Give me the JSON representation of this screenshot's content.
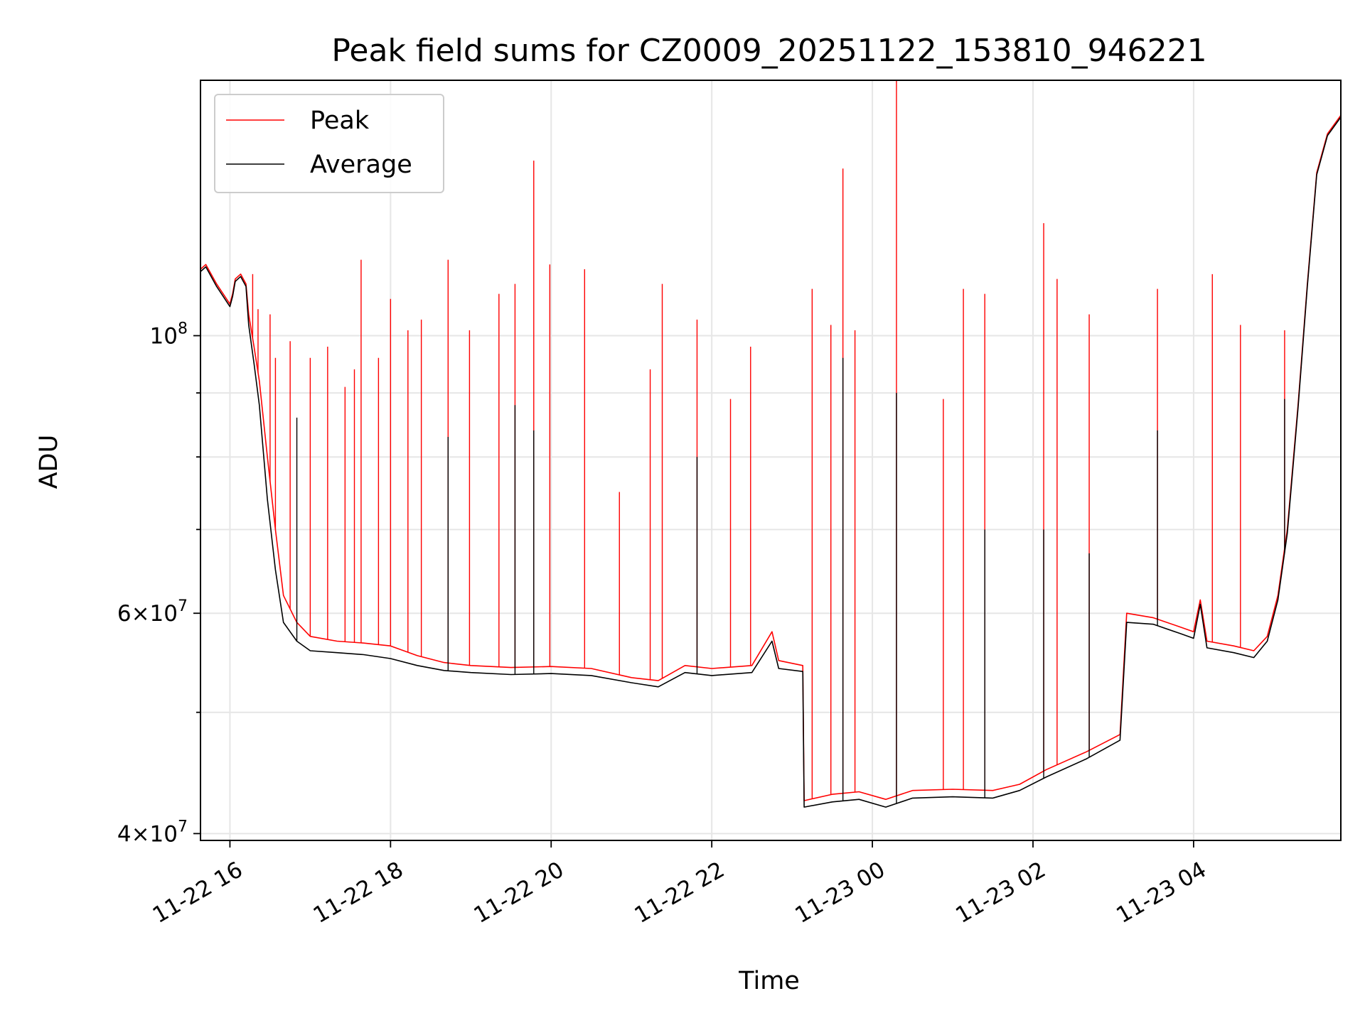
{
  "chart_data": {
    "type": "line",
    "title": "Peak field sums for CZ0009_20251122_153810_946221",
    "xlabel": "Time",
    "ylabel": "ADU",
    "x_ticks": [
      "11-22 16",
      "11-22 18",
      "11-22 20",
      "11-22 22",
      "11-23 00",
      "11-23 02",
      "11-23 04"
    ],
    "y_scale": "log",
    "y_tick_labels": [
      {
        "value": 40000000,
        "mant": "4",
        "exp": "7"
      },
      {
        "value": 60000000,
        "mant": "6",
        "exp": "7"
      },
      {
        "value": 100000000,
        "mant": "",
        "exp": "8"
      }
    ],
    "y_minor_ticks": [
      50000000,
      70000000,
      80000000,
      90000000
    ],
    "xlim": [
      "2025-11-22 15:38",
      "2025-11-23 05:50"
    ],
    "ylim": [
      39500000,
      160000000
    ],
    "grid": true,
    "legend_position": "upper-left",
    "series": [
      {
        "name": "Peak",
        "color": "#ff0000",
        "points": [
          [
            "2025-11-22 15:38",
            113000000
          ],
          [
            "2025-11-22 15:42",
            114000000
          ],
          [
            "2025-11-22 15:50",
            110000000
          ],
          [
            "2025-11-22 16:00",
            106000000
          ],
          [
            "2025-11-22 16:02",
            108000000
          ],
          [
            "2025-11-22 16:04",
            111000000
          ],
          [
            "2025-11-22 16:08",
            112000000
          ],
          [
            "2025-11-22 16:12",
            110000000
          ],
          [
            "2025-11-22 16:14",
            104000000
          ],
          [
            "2025-11-22 16:18",
            98000000
          ],
          [
            "2025-11-22 16:22",
            92000000
          ],
          [
            "2025-11-22 16:28",
            80000000
          ],
          [
            "2025-11-22 16:34",
            70000000
          ],
          [
            "2025-11-22 16:40",
            62000000
          ],
          [
            "2025-11-22 16:50",
            59000000
          ],
          [
            "2025-11-22 17:00",
            57500000
          ],
          [
            "2025-11-22 17:20",
            57000000
          ],
          [
            "2025-11-22 17:40",
            56800000
          ],
          [
            "2025-11-22 18:00",
            56500000
          ],
          [
            "2025-11-22 18:20",
            55500000
          ],
          [
            "2025-11-22 18:40",
            54800000
          ],
          [
            "2025-11-22 19:00",
            54500000
          ],
          [
            "2025-11-22 19:30",
            54300000
          ],
          [
            "2025-11-22 20:00",
            54400000
          ],
          [
            "2025-11-22 20:30",
            54200000
          ],
          [
            "2025-11-22 21:00",
            53300000
          ],
          [
            "2025-11-22 21:20",
            53000000
          ],
          [
            "2025-11-22 21:40",
            54500000
          ],
          [
            "2025-11-22 22:00",
            54200000
          ],
          [
            "2025-11-22 22:30",
            54500000
          ],
          [
            "2025-11-22 22:45",
            58000000
          ],
          [
            "2025-11-22 22:50",
            55000000
          ],
          [
            "2025-11-22 23:08",
            54500000
          ],
          [
            "2025-11-22 23:09",
            42500000
          ],
          [
            "2025-11-22 23:30",
            43000000
          ],
          [
            "2025-11-22 23:50",
            43200000
          ],
          [
            "2025-11-23 00:10",
            42600000
          ],
          [
            "2025-11-23 00:30",
            43300000
          ],
          [
            "2025-11-23 01:00",
            43400000
          ],
          [
            "2025-11-23 01:30",
            43300000
          ],
          [
            "2025-11-23 01:50",
            43800000
          ],
          [
            "2025-11-23 02:10",
            45000000
          ],
          [
            "2025-11-23 02:40",
            46500000
          ],
          [
            "2025-11-23 03:05",
            48000000
          ],
          [
            "2025-11-23 03:10",
            60000000
          ],
          [
            "2025-11-23 03:30",
            59500000
          ],
          [
            "2025-11-23 03:50",
            58500000
          ],
          [
            "2025-11-23 04:00",
            58000000
          ],
          [
            "2025-11-23 04:05",
            61500000
          ],
          [
            "2025-11-23 04:10",
            57000000
          ],
          [
            "2025-11-23 04:30",
            56500000
          ],
          [
            "2025-11-23 04:45",
            56000000
          ],
          [
            "2025-11-23 04:55",
            57500000
          ],
          [
            "2025-11-23 05:03",
            62000000
          ],
          [
            "2025-11-23 05:10",
            70000000
          ],
          [
            "2025-11-23 05:18",
            88000000
          ],
          [
            "2025-11-23 05:25",
            110000000
          ],
          [
            "2025-11-23 05:32",
            135000000
          ],
          [
            "2025-11-23 05:40",
            145000000
          ],
          [
            "2025-11-23 05:50",
            150000000
          ]
        ],
        "spikes": [
          [
            "2025-11-22 16:17",
            112000000
          ],
          [
            "2025-11-22 16:21",
            105000000
          ],
          [
            "2025-11-22 16:30",
            104000000
          ],
          [
            "2025-11-22 16:34",
            96000000
          ],
          [
            "2025-11-22 16:45",
            99000000
          ],
          [
            "2025-11-22 17:00",
            96000000
          ],
          [
            "2025-11-22 17:13",
            98000000
          ],
          [
            "2025-11-22 17:26",
            91000000
          ],
          [
            "2025-11-22 17:33",
            94000000
          ],
          [
            "2025-11-22 17:38",
            115000000
          ],
          [
            "2025-11-22 17:51",
            96000000
          ],
          [
            "2025-11-22 18:00",
            107000000
          ],
          [
            "2025-11-22 18:13",
            101000000
          ],
          [
            "2025-11-22 18:23",
            103000000
          ],
          [
            "2025-11-22 18:43",
            115000000
          ],
          [
            "2025-11-22 18:59",
            101000000
          ],
          [
            "2025-11-22 19:21",
            108000000
          ],
          [
            "2025-11-22 19:33",
            110000000
          ],
          [
            "2025-11-22 19:47",
            138000000
          ],
          [
            "2025-11-22 19:59",
            114000000
          ],
          [
            "2025-11-22 20:25",
            113000000
          ],
          [
            "2025-11-22 20:51",
            75000000
          ],
          [
            "2025-11-22 21:14",
            94000000
          ],
          [
            "2025-11-22 21:23",
            110000000
          ],
          [
            "2025-11-22 21:49",
            103000000
          ],
          [
            "2025-11-22 22:14",
            89000000
          ],
          [
            "2025-11-22 22:29",
            98000000
          ],
          [
            "2025-11-22 23:15",
            109000000
          ],
          [
            "2025-11-22 23:29",
            102000000
          ],
          [
            "2025-11-22 23:38",
            136000000
          ],
          [
            "2025-11-22 23:47",
            101000000
          ],
          [
            "2025-11-23 00:18",
            160000000
          ],
          [
            "2025-11-23 00:53",
            89000000
          ],
          [
            "2025-11-23 01:08",
            109000000
          ],
          [
            "2025-11-23 01:24",
            108000000
          ],
          [
            "2025-11-23 02:08",
            123000000
          ],
          [
            "2025-11-23 02:18",
            111000000
          ],
          [
            "2025-11-23 02:42",
            104000000
          ],
          [
            "2025-11-23 03:33",
            109000000
          ],
          [
            "2025-11-23 04:14",
            112000000
          ],
          [
            "2025-11-23 04:35",
            102000000
          ],
          [
            "2025-11-23 05:08",
            101000000
          ]
        ]
      },
      {
        "name": "Average",
        "color": "#000000",
        "points": [
          [
            "2025-11-22 15:38",
            112500000
          ],
          [
            "2025-11-22 15:42",
            113500000
          ],
          [
            "2025-11-22 15:50",
            109500000
          ],
          [
            "2025-11-22 16:00",
            105500000
          ],
          [
            "2025-11-22 16:02",
            107500000
          ],
          [
            "2025-11-22 16:04",
            110500000
          ],
          [
            "2025-11-22 16:08",
            111500000
          ],
          [
            "2025-11-22 16:12",
            109500000
          ],
          [
            "2025-11-22 16:14",
            102000000
          ],
          [
            "2025-11-22 16:18",
            95000000
          ],
          [
            "2025-11-22 16:22",
            88000000
          ],
          [
            "2025-11-22 16:28",
            74000000
          ],
          [
            "2025-11-22 16:34",
            65000000
          ],
          [
            "2025-11-22 16:40",
            59000000
          ],
          [
            "2025-11-22 16:50",
            57000000
          ],
          [
            "2025-11-22 17:00",
            56000000
          ],
          [
            "2025-11-22 17:20",
            55800000
          ],
          [
            "2025-11-22 17:40",
            55600000
          ],
          [
            "2025-11-22 18:00",
            55200000
          ],
          [
            "2025-11-22 18:20",
            54500000
          ],
          [
            "2025-11-22 18:40",
            54000000
          ],
          [
            "2025-11-22 19:00",
            53800000
          ],
          [
            "2025-11-22 19:30",
            53600000
          ],
          [
            "2025-11-22 20:00",
            53700000
          ],
          [
            "2025-11-22 20:30",
            53500000
          ],
          [
            "2025-11-22 21:00",
            52800000
          ],
          [
            "2025-11-22 21:20",
            52400000
          ],
          [
            "2025-11-22 21:40",
            53800000
          ],
          [
            "2025-11-22 22:00",
            53500000
          ],
          [
            "2025-11-22 22:30",
            53800000
          ],
          [
            "2025-11-22 22:45",
            57000000
          ],
          [
            "2025-11-22 22:50",
            54200000
          ],
          [
            "2025-11-22 23:08",
            53900000
          ],
          [
            "2025-11-22 23:09",
            42000000
          ],
          [
            "2025-11-22 23:30",
            42400000
          ],
          [
            "2025-11-22 23:50",
            42600000
          ],
          [
            "2025-11-23 00:10",
            42000000
          ],
          [
            "2025-11-23 00:30",
            42700000
          ],
          [
            "2025-11-23 01:00",
            42800000
          ],
          [
            "2025-11-23 01:30",
            42700000
          ],
          [
            "2025-11-23 01:50",
            43300000
          ],
          [
            "2025-11-23 02:10",
            44400000
          ],
          [
            "2025-11-23 02:40",
            45900000
          ],
          [
            "2025-11-23 03:05",
            47500000
          ],
          [
            "2025-11-23 03:10",
            59000000
          ],
          [
            "2025-11-23 03:30",
            58800000
          ],
          [
            "2025-11-23 03:50",
            57800000
          ],
          [
            "2025-11-23 04:00",
            57300000
          ],
          [
            "2025-11-23 04:05",
            61000000
          ],
          [
            "2025-11-23 04:10",
            56300000
          ],
          [
            "2025-11-23 04:30",
            55800000
          ],
          [
            "2025-11-23 04:45",
            55300000
          ],
          [
            "2025-11-23 04:55",
            57000000
          ],
          [
            "2025-11-23 05:03",
            61500000
          ],
          [
            "2025-11-23 05:10",
            69500000
          ],
          [
            "2025-11-23 05:18",
            87500000
          ],
          [
            "2025-11-23 05:25",
            109500000
          ],
          [
            "2025-11-23 05:32",
            134500000
          ],
          [
            "2025-11-23 05:40",
            144500000
          ],
          [
            "2025-11-23 05:50",
            149500000
          ]
        ],
        "spikes": [
          [
            "2025-11-22 19:33",
            88000000
          ],
          [
            "2025-11-22 19:47",
            84000000
          ],
          [
            "2025-11-22 21:49",
            80000000
          ],
          [
            "2025-11-22 23:38",
            96000000
          ],
          [
            "2025-11-23 00:18",
            90000000
          ],
          [
            "2025-11-23 01:24",
            70000000
          ],
          [
            "2025-11-23 02:08",
            70000000
          ],
          [
            "2025-11-23 02:42",
            67000000
          ],
          [
            "2025-11-23 03:33",
            84000000
          ],
          [
            "2025-11-22 18:43",
            83000000
          ],
          [
            "2025-11-22 16:50",
            86000000
          ],
          [
            "2025-11-23 05:08",
            89000000
          ]
        ]
      }
    ]
  }
}
